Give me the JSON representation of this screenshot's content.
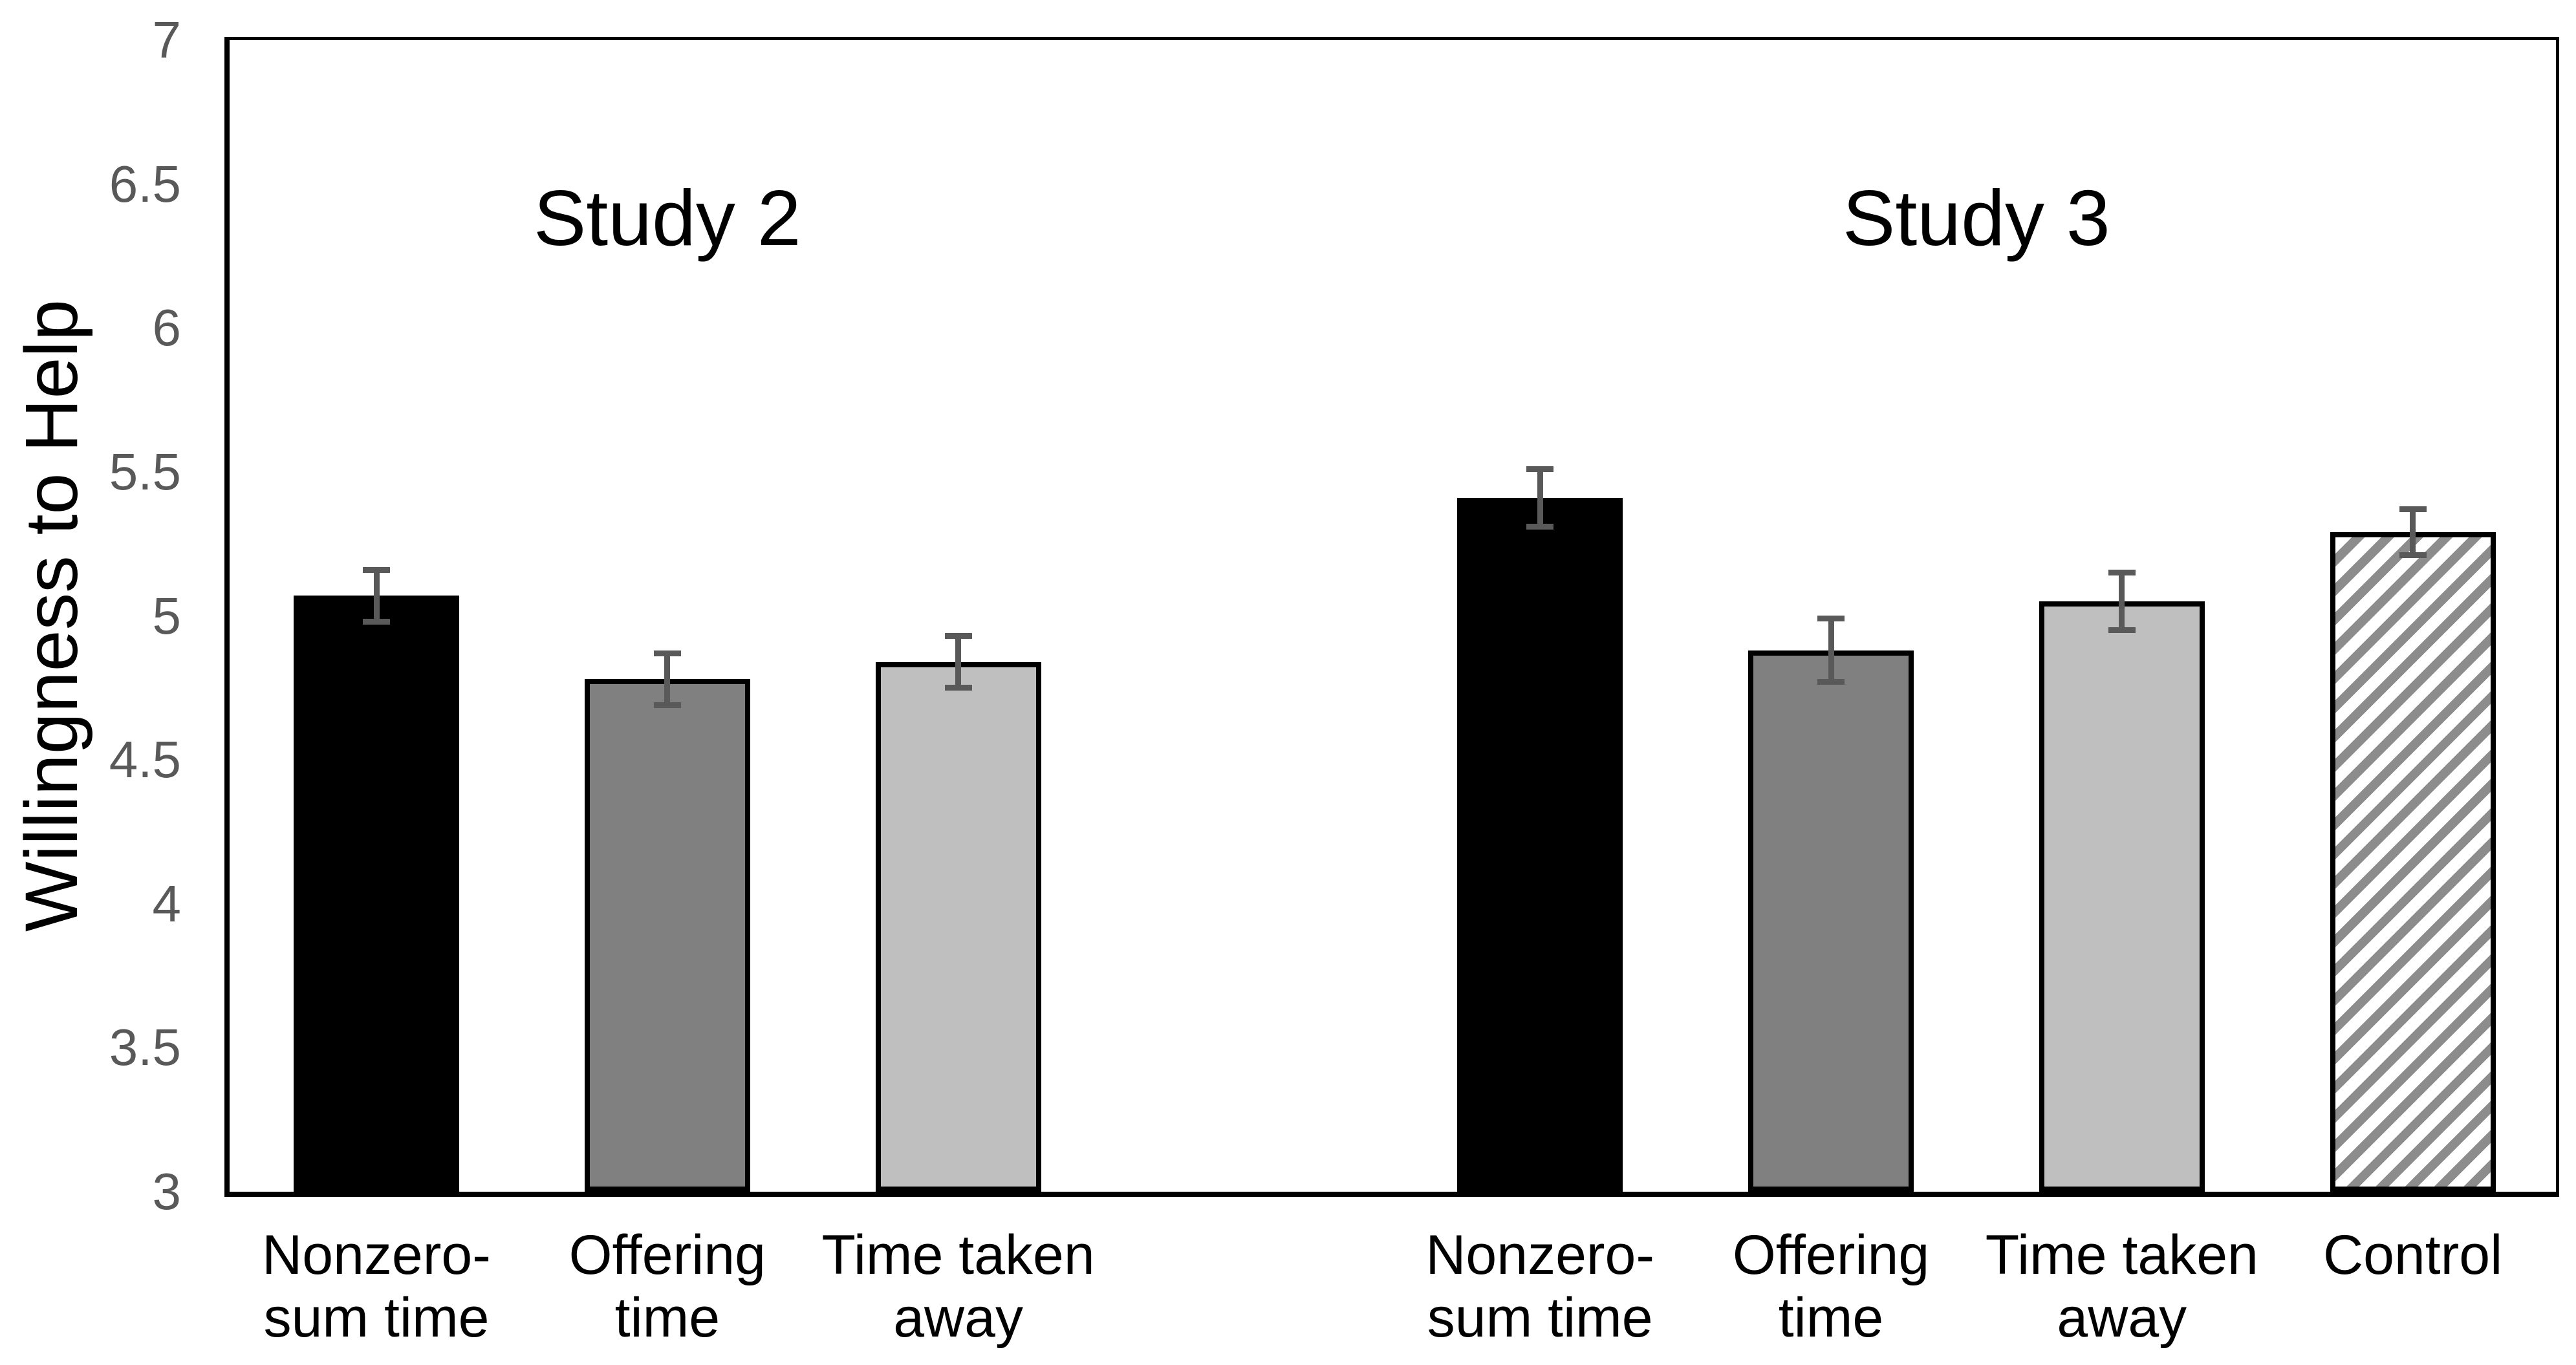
{
  "chart_data": {
    "type": "bar",
    "title": "",
    "ylabel": "Willingness to Help",
    "xlabel": "",
    "ylim": [
      3,
      7
    ],
    "yticks": [
      3,
      3.5,
      4,
      4.5,
      5,
      5.5,
      6,
      6.5,
      7
    ],
    "grid": false,
    "legend": "none",
    "error_bars": true,
    "groups": [
      {
        "label": "Study 2",
        "bars": [
          {
            "category": "Nonzero-\nsum time",
            "value": 5.07,
            "error": 0.09,
            "fill": "black"
          },
          {
            "category": "Offering\ntime",
            "value": 4.78,
            "error": 0.09,
            "fill": "gray"
          },
          {
            "category": "Time taken\naway",
            "value": 4.84,
            "error": 0.09,
            "fill": "lightgray"
          }
        ]
      },
      {
        "label": "Study 3",
        "bars": [
          {
            "category": "Nonzero-\nsum time",
            "value": 5.41,
            "error": 0.1,
            "fill": "black"
          },
          {
            "category": "Offering\ntime",
            "value": 4.88,
            "error": 0.11,
            "fill": "gray"
          },
          {
            "category": "Time taken\naway",
            "value": 5.05,
            "error": 0.1,
            "fill": "lightgray"
          },
          {
            "category": "Control",
            "value": 5.29,
            "error": 0.08,
            "fill": "hatched"
          }
        ]
      }
    ],
    "colors": {
      "bar_black": "#000000",
      "bar_gray": "#808080",
      "bar_lightgray": "#bfbfbf",
      "hatch_stripe": "#8c8c8c",
      "bar_border": "#000000",
      "error_bar": "#595959",
      "tick_label": "#595959",
      "axis_line": "#000000",
      "background": "#ffffff"
    }
  }
}
